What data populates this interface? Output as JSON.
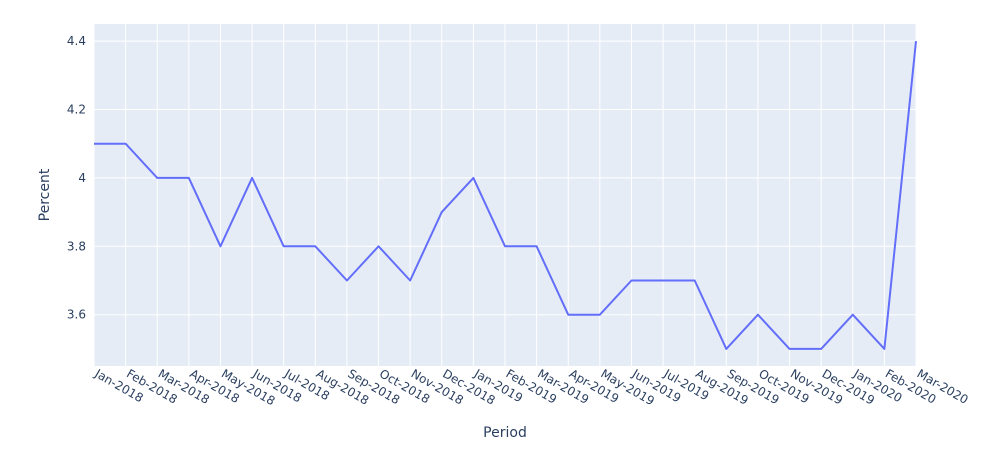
{
  "chart_data": {
    "type": "line",
    "xlabel": "Period",
    "ylabel": "Percent",
    "x": [
      "Jan-2018",
      "Feb-2018",
      "Mar-2018",
      "Apr-2018",
      "May-2018",
      "Jun-2018",
      "Jul-2018",
      "Aug-2018",
      "Sep-2018",
      "Oct-2018",
      "Nov-2018",
      "Dec-2018",
      "Jan-2019",
      "Feb-2019",
      "Mar-2019",
      "Apr-2019",
      "May-2019",
      "Jun-2019",
      "Jul-2019",
      "Aug-2019",
      "Sep-2019",
      "Oct-2019",
      "Nov-2019",
      "Dec-2019",
      "Jan-2020",
      "Feb-2020",
      "Mar-2020"
    ],
    "series": [
      {
        "values": [
          4.1,
          4.1,
          4.0,
          4.0,
          3.8,
          4.0,
          3.8,
          3.8,
          3.7,
          3.8,
          3.7,
          3.9,
          4.0,
          3.8,
          3.8,
          3.6,
          3.6,
          3.7,
          3.7,
          3.7,
          3.5,
          3.6,
          3.5,
          3.5,
          3.6,
          3.5,
          4.4
        ]
      }
    ],
    "ylim": [
      3.45,
      4.45
    ],
    "yticks": [
      "3.6",
      "3.8",
      "4",
      "4.2",
      "4.4"
    ],
    "grid": true,
    "colors": {
      "line": "#636efa",
      "plot_bg": "#e5ecf6",
      "grid": "#ffffff",
      "text": "#2a3f5f"
    }
  }
}
